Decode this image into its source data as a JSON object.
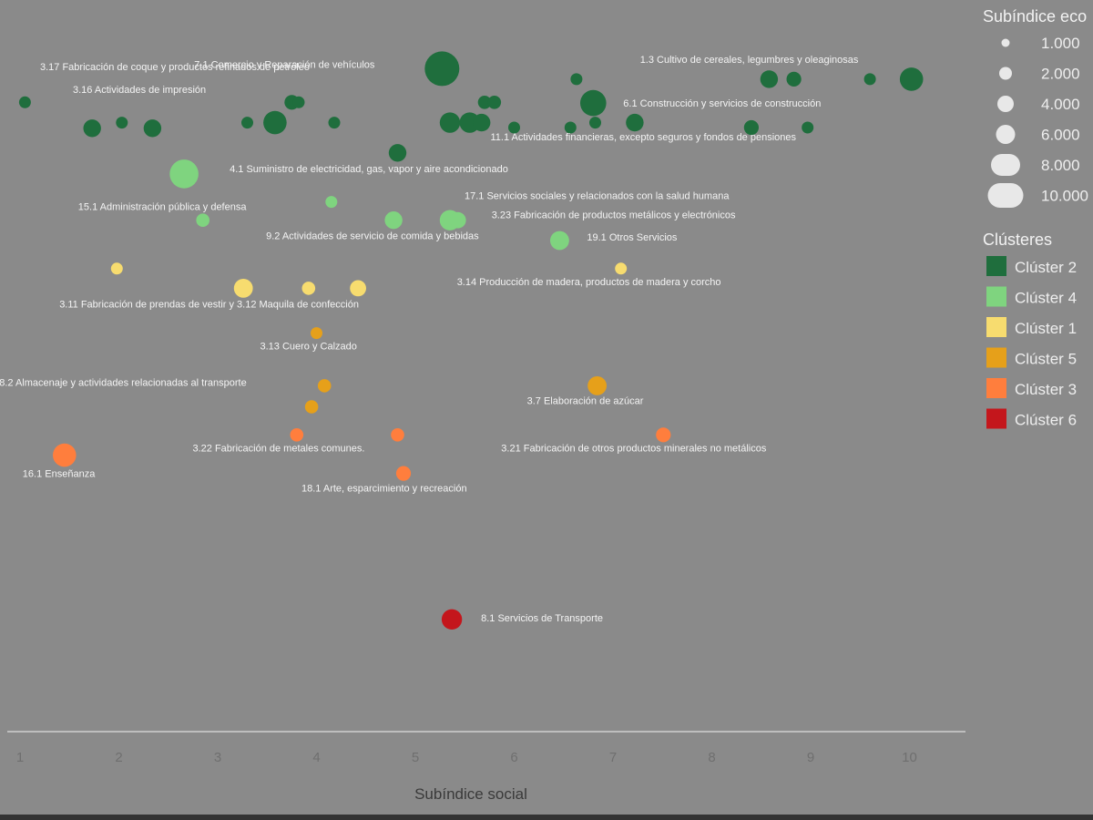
{
  "chart_data": {
    "type": "scatter",
    "title": "",
    "xlabel": "Subíndice social",
    "ylabel": "",
    "xlim": [
      0.8,
      10.6
    ],
    "x_ticks": [
      "1",
      "2",
      "3",
      "4",
      "5",
      "6",
      "7",
      "8",
      "9",
      "10"
    ],
    "size_legend": {
      "title": "Subíndice eco",
      "entries": [
        "1.000",
        "2.000",
        "4.000",
        "6.000",
        "8.000",
        "10.000"
      ],
      "values": [
        1,
        2,
        4,
        6,
        8,
        10
      ]
    },
    "color_legend": {
      "title": "Clústeres",
      "entries": [
        {
          "name": "Clúster 2",
          "color": "#1f6e3d"
        },
        {
          "name": "Clúster 4",
          "color": "#7fd47f"
        },
        {
          "name": "Clúster 1",
          "color": "#f7dc6f"
        },
        {
          "name": "Clúster 5",
          "color": "#e6a01a"
        },
        {
          "name": "Clúster 3",
          "color": "#ff7e3d"
        },
        {
          "name": "Clúster 6",
          "color": "#c4161c"
        }
      ]
    },
    "series": [
      {
        "name": "Clúster 2",
        "color": "#1f6e3d",
        "points": [
          {
            "x": 5.27,
            "y": 94.5,
            "s": 10,
            "label": "7.1   Comercio y Reparación de vehículos"
          },
          {
            "x": 6.63,
            "y": 93.0,
            "s": 2
          },
          {
            "x": 8.58,
            "y": 93.0,
            "s": 4
          },
          {
            "x": 8.83,
            "y": 93.0,
            "s": 3
          },
          {
            "x": 9.6,
            "y": 93.0,
            "s": 2
          },
          {
            "x": 10.02,
            "y": 93.0,
            "s": 6,
            "label": "1.3   Cultivo de cereales, legumbres y oleaginosas"
          },
          {
            "x": 1.05,
            "y": 89.7,
            "s": 2
          },
          {
            "x": 3.75,
            "y": 89.7,
            "s": 3
          },
          {
            "x": 3.82,
            "y": 89.7,
            "s": 2
          },
          {
            "x": 5.7,
            "y": 89.7,
            "s": 2.5
          },
          {
            "x": 5.8,
            "y": 89.7,
            "s": 2.5
          },
          {
            "x": 6.8,
            "y": 89.6,
            "s": 7,
            "label": "6.1   Construcción y servicios de construcción"
          },
          {
            "x": 1.73,
            "y": 86.0,
            "s": 4
          },
          {
            "x": 2.03,
            "y": 86.8,
            "s": 2
          },
          {
            "x": 2.34,
            "y": 86.0,
            "s": 4
          },
          {
            "x": 3.3,
            "y": 86.8,
            "s": 2
          },
          {
            "x": 3.58,
            "y": 86.8,
            "s": 6
          },
          {
            "x": 4.18,
            "y": 86.8,
            "s": 2
          },
          {
            "x": 5.35,
            "y": 86.8,
            "s": 5
          },
          {
            "x": 5.55,
            "y": 86.8,
            "s": 5
          },
          {
            "x": 5.67,
            "y": 86.8,
            "s": 4
          },
          {
            "x": 6.0,
            "y": 86.1,
            "s": 2
          },
          {
            "x": 6.57,
            "y": 86.1,
            "s": 2
          },
          {
            "x": 6.82,
            "y": 86.8,
            "s": 2
          },
          {
            "x": 7.22,
            "y": 86.8,
            "s": 4
          },
          {
            "x": 8.4,
            "y": 86.1,
            "s": 3
          },
          {
            "x": 8.97,
            "y": 86.1,
            "s": 2
          },
          {
            "x": 4.82,
            "y": 82.5,
            "s": 4,
            "label": "11.1   Actividades financieras, excepto seguros y fondos de pensiones"
          }
        ]
      },
      {
        "name": "Clúster 4",
        "color": "#7fd47f",
        "points": [
          {
            "x": 2.66,
            "y": 79.5,
            "s": 8,
            "label": "4.1   Suministro de electricidad, gas, vapor y aire acondicionado"
          },
          {
            "x": 4.15,
            "y": 75.5,
            "s": 2,
            "label": "15.1   Administración pública y defensa"
          },
          {
            "x": 2.85,
            "y": 72.9,
            "s": 2.5
          },
          {
            "x": 4.78,
            "y": 72.9,
            "s": 4,
            "label": "9.2   Actividades de servicio de comida y bebidas"
          },
          {
            "x": 5.35,
            "y": 72.9,
            "s": 5,
            "label": "17.1   Servicios sociales y relacionados con la salud humana"
          },
          {
            "x": 5.43,
            "y": 72.9,
            "s": 3.5,
            "label": "3.23   Fabricación de productos metálicos y electrónicos"
          },
          {
            "x": 6.46,
            "y": 70.0,
            "s": 4.5,
            "label": "19.1   Otros Servicios"
          }
        ]
      },
      {
        "name": "Clúster 1",
        "color": "#f7dc6f",
        "points": [
          {
            "x": 1.98,
            "y": 66.0,
            "s": 2
          },
          {
            "x": 7.08,
            "y": 66.0,
            "s": 2,
            "label": "3.14   Producción de madera, productos de madera y corcho"
          },
          {
            "x": 3.26,
            "y": 63.2,
            "s": 4.5,
            "label": "3.11   Fabricación de prendas de vestir y 3.12 Maquila de confección"
          },
          {
            "x": 3.92,
            "y": 63.2,
            "s": 2.5
          },
          {
            "x": 4.42,
            "y": 63.2,
            "s": 3.5
          }
        ]
      },
      {
        "name": "Clúster 5",
        "color": "#e6a01a",
        "points": [
          {
            "x": 4.0,
            "y": 56.8,
            "s": 2,
            "label": "3.13   Cuero y Calzado"
          },
          {
            "x": 4.08,
            "y": 49.3,
            "s": 2.5,
            "label": "8.2   Almacenaje y actividades relacionadas al transporte"
          },
          {
            "x": 3.95,
            "y": 46.3,
            "s": 2.5
          },
          {
            "x": 6.84,
            "y": 49.3,
            "s": 4.5,
            "label": "3.7   Elaboración de azúcar"
          }
        ]
      },
      {
        "name": "Clúster 3",
        "color": "#ff7e3d",
        "points": [
          {
            "x": 3.8,
            "y": 42.3,
            "s": 2.5
          },
          {
            "x": 4.82,
            "y": 42.3,
            "s": 2.5,
            "label": "3.22   Fabricación de metales comunes."
          },
          {
            "x": 7.51,
            "y": 42.3,
            "s": 3,
            "label": "3.21   Fabricación de otros productos minerales no metálicos"
          },
          {
            "x": 1.45,
            "y": 39.4,
            "s": 6,
            "label": "16.1   Enseñanza"
          },
          {
            "x": 4.88,
            "y": 36.8,
            "s": 3,
            "label": "18.1   Arte, esparcimiento y recreación"
          }
        ]
      },
      {
        "name": "Clúster 6",
        "color": "#c4161c",
        "points": [
          {
            "x": 5.37,
            "y": 16.0,
            "s": 5,
            "label": "8.1   Servicios de Transporte"
          }
        ]
      }
    ]
  }
}
